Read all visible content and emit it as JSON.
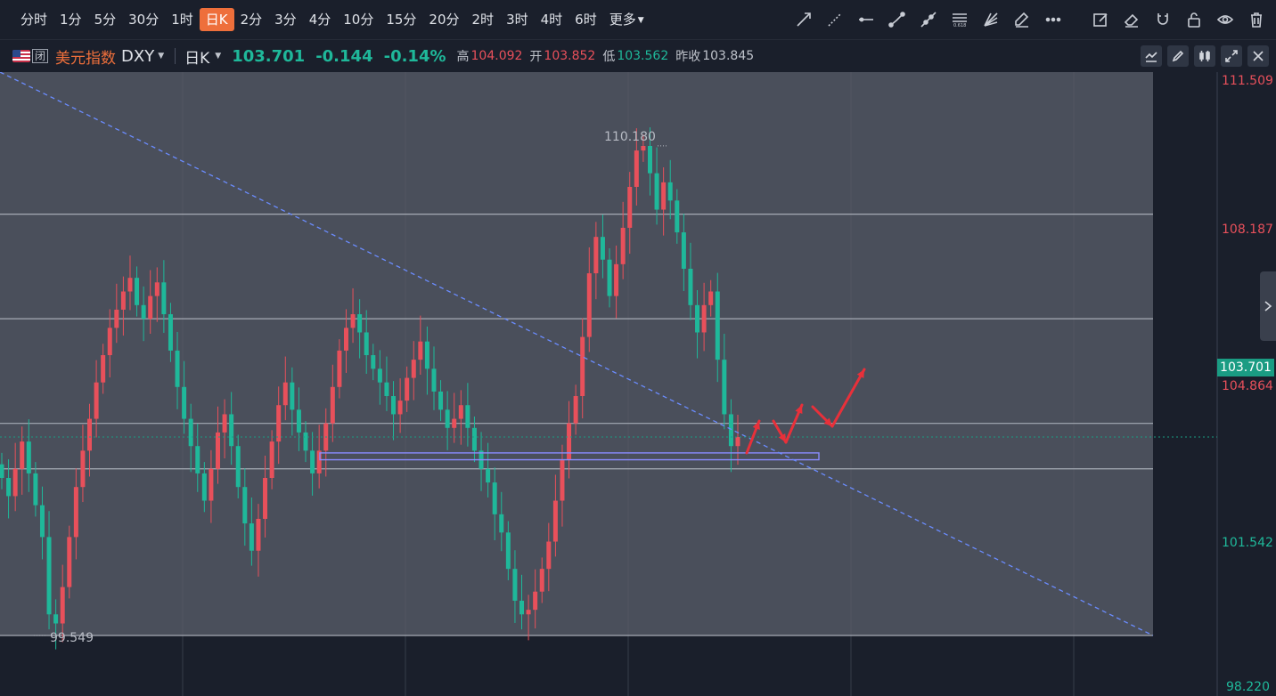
{
  "toolbar": {
    "periods": [
      "分时",
      "1分",
      "5分",
      "30分",
      "1时",
      "日K",
      "2分",
      "3分",
      "4分",
      "10分",
      "15分",
      "20分",
      "2时",
      "3时",
      "4时",
      "6时",
      "更多"
    ],
    "active_period": "日K",
    "drawing_tools": [
      "trend-line-icon",
      "ray-icon",
      "horizontal-line-icon",
      "segment-icon",
      "extended-line-icon",
      "fibonacci-icon",
      "fan-icon",
      "brush-icon",
      "more-dots-icon",
      "edit-note-icon",
      "eraser-icon",
      "magnet-icon",
      "lock-icon",
      "eye-icon",
      "trash-icon"
    ]
  },
  "info": {
    "symbol_name": "美元指数",
    "symbol_code": "DXY",
    "closed_badge": "闭",
    "timeframe": "日K",
    "price": "103.701",
    "change": "-0.144",
    "change_pct": "-0.14%",
    "high_label": "高",
    "high": "104.092",
    "open_label": "开",
    "open": "103.852",
    "low_label": "低",
    "low": "103.562",
    "prev_close_label": "昨收",
    "prev_close": "103.845"
  },
  "chart": {
    "y_axis_labels": [
      {
        "text": "111.509",
        "color": "#e8505b"
      },
      {
        "text": "108.187",
        "color": "#e8505b"
      },
      {
        "text": "104.864",
        "color": "#e8505b"
      },
      {
        "text": "101.542",
        "color": "#1fb89a"
      },
      {
        "text": "98.220",
        "color": "#1fb89a"
      }
    ],
    "current_price_tag": "103.701",
    "high_marker": "110.180",
    "low_marker": "99.549",
    "colors": {
      "up": "#e8505b",
      "down": "#1fb89a",
      "panel": "#4a4f5b",
      "accent": "#ee6f3b",
      "trendline": "#6b8cff",
      "zone": "#8a8cff"
    }
  },
  "chart_data": {
    "type": "candlestick",
    "title": "美元指数 DXY 日K",
    "ylim": [
      98.22,
      111.509
    ],
    "y_ticks": [
      111.509,
      108.187,
      104.864,
      101.542,
      98.22
    ],
    "current_price": 103.701,
    "period_high": 110.18,
    "period_low": 99.549,
    "horizontal_levels": [
      108.6,
      106.3,
      104.0,
      103.0
    ],
    "support_zone": [
      103.2,
      103.35
    ],
    "closes": [
      102.8,
      102.4,
      103.0,
      103.6,
      102.9,
      102.2,
      101.5,
      99.8,
      99.6,
      100.4,
      101.5,
      102.6,
      103.4,
      104.1,
      104.9,
      105.5,
      106.1,
      106.5,
      106.9,
      107.2,
      106.6,
      106.3,
      106.8,
      107.1,
      106.4,
      105.6,
      104.8,
      104.1,
      103.5,
      102.9,
      102.3,
      103.0,
      103.8,
      104.2,
      103.5,
      102.6,
      101.8,
      101.2,
      101.9,
      102.8,
      103.6,
      104.4,
      104.9,
      104.3,
      103.8,
      103.4,
      102.9,
      103.4,
      104.0,
      104.8,
      105.6,
      106.1,
      106.4,
      106.0,
      105.5,
      105.2,
      104.9,
      104.6,
      104.2,
      104.5,
      105.0,
      105.4,
      105.8,
      105.2,
      104.7,
      104.3,
      103.9,
      104.1,
      104.4,
      103.9,
      103.4,
      103.0,
      102.7,
      102.0,
      101.6,
      100.8,
      100.1,
      99.8,
      99.9,
      100.3,
      100.8,
      101.4,
      102.3,
      103.2,
      104.0,
      104.6,
      105.9,
      107.3,
      108.1,
      107.6,
      106.8,
      107.5,
      108.3,
      109.2,
      110.0,
      110.1,
      109.5,
      108.7,
      109.3,
      108.9,
      108.2,
      107.4,
      106.6,
      106.0,
      106.6,
      106.9,
      105.4,
      104.2,
      103.5,
      103.7
    ]
  }
}
